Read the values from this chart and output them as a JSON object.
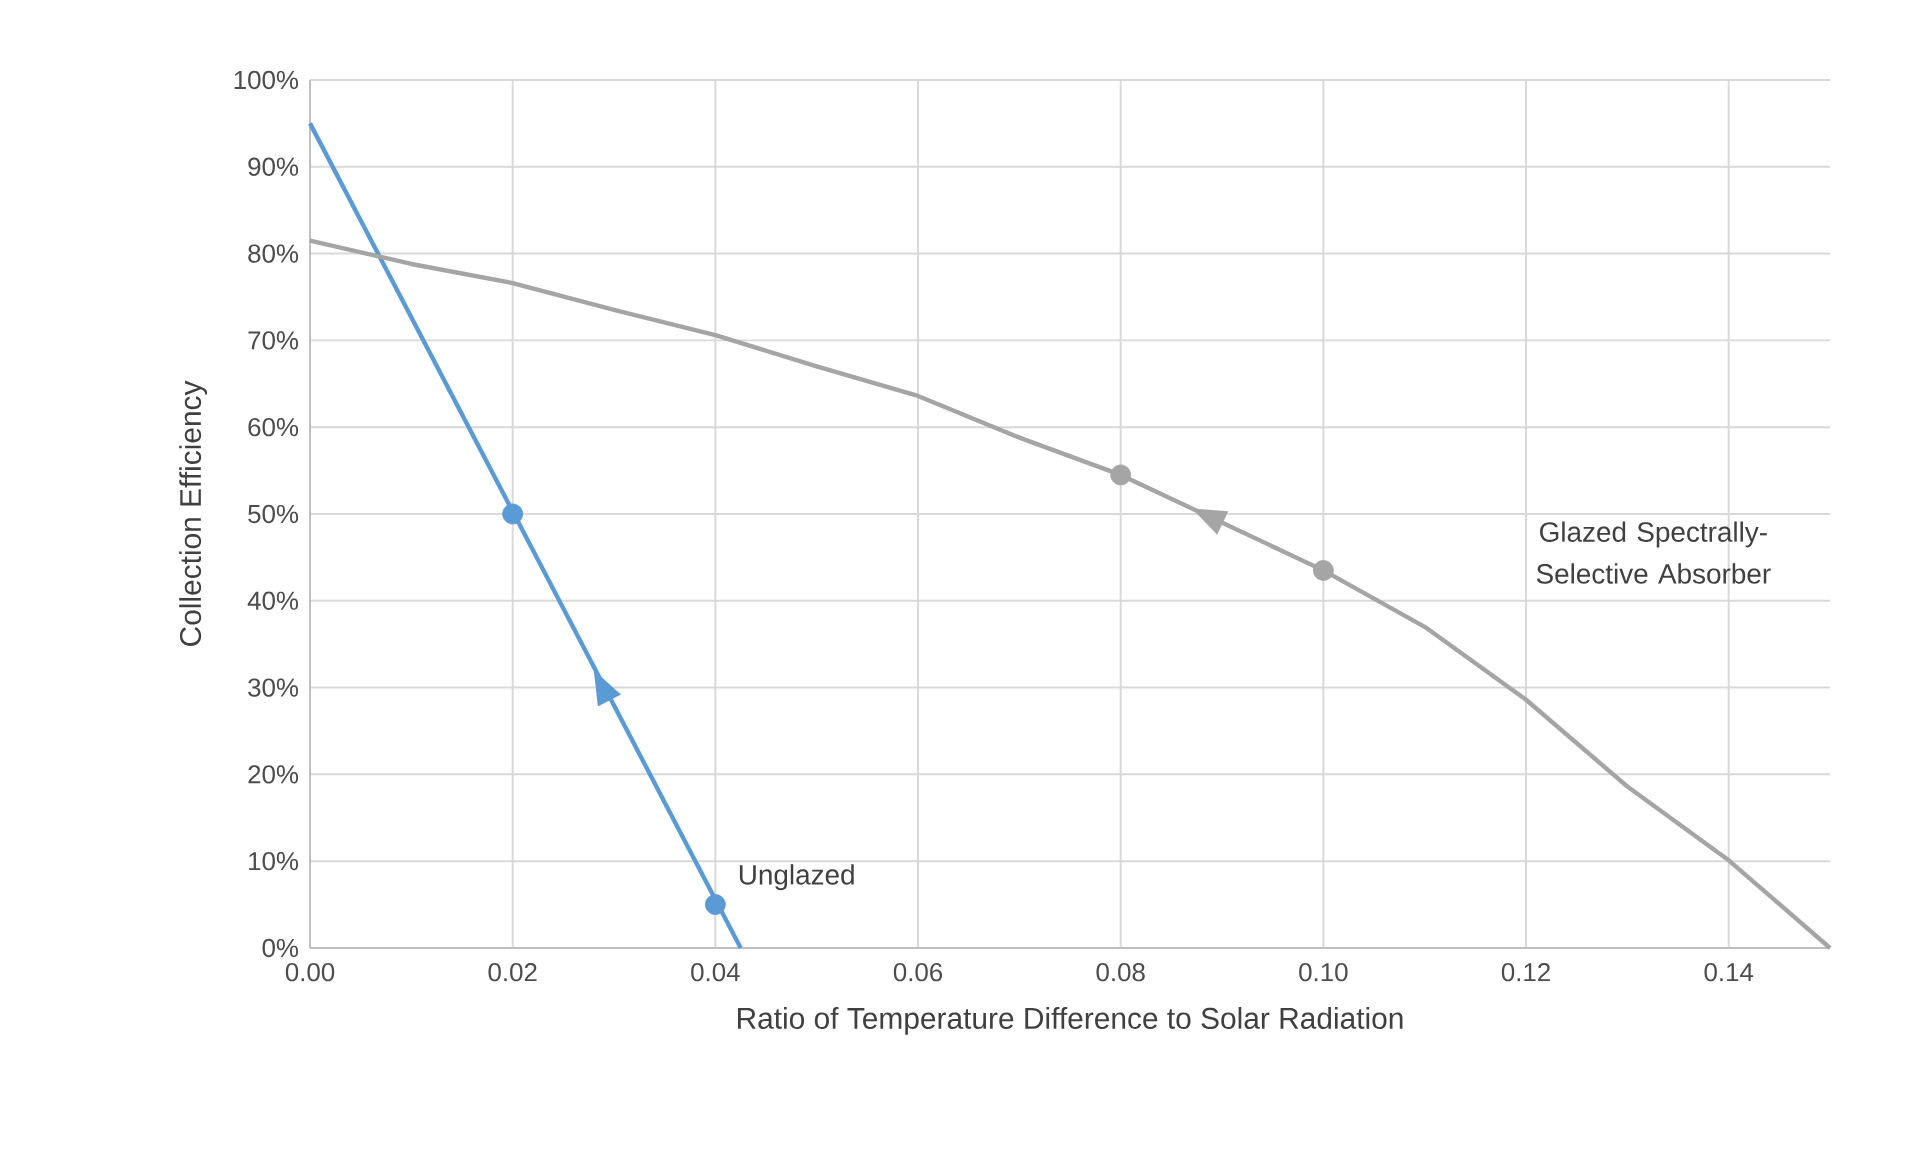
{
  "chart_data": {
    "type": "line",
    "xlabel": "Ratio of Temperature Difference to Solar Radiation",
    "ylabel": "Collection Efficiency",
    "xlim": [
      0,
      0.15
    ],
    "ylim": [
      0,
      100
    ],
    "xticks": [
      {
        "value": 0,
        "label": "0.00"
      },
      {
        "value": 0.02,
        "label": "0.02"
      },
      {
        "value": 0.04,
        "label": "0.04"
      },
      {
        "value": 0.06,
        "label": "0.06"
      },
      {
        "value": 0.08,
        "label": "0.08"
      },
      {
        "value": 0.1,
        "label": "0.10"
      },
      {
        "value": 0.12,
        "label": "0.12"
      },
      {
        "value": 0.14,
        "label": "0.14"
      }
    ],
    "yticks": [
      {
        "value": 0,
        "label": "0%"
      },
      {
        "value": 10,
        "label": "10%"
      },
      {
        "value": 20,
        "label": "20%"
      },
      {
        "value": 30,
        "label": "30%"
      },
      {
        "value": 40,
        "label": "40%"
      },
      {
        "value": 50,
        "label": "50%"
      },
      {
        "value": 60,
        "label": "60%"
      },
      {
        "value": 70,
        "label": "70%"
      },
      {
        "value": 80,
        "label": "80%"
      },
      {
        "value": 90,
        "label": "90%"
      },
      {
        "value": 100,
        "label": "100%"
      }
    ],
    "grid": true,
    "marker": "none",
    "line_style": "solid",
    "series": [
      {
        "color": "#5b9bd5",
        "x": [
          0,
          0.0425
        ],
        "values": [
          95,
          0
        ]
      },
      {
        "type": "scatter",
        "color": "#5b9bd5",
        "marker": "circle",
        "x": [
          0.02,
          0.04
        ],
        "values": [
          50,
          5
        ]
      },
      {
        "color": "#a5a5a5",
        "x": [
          0,
          0.01,
          0.02,
          0.03,
          0.04,
          0.05,
          0.06,
          0.07,
          0.08,
          0.1,
          0.11,
          0.12,
          0.13,
          0.14,
          0.15
        ],
        "values": [
          81.5,
          78.8,
          76.6,
          73.5,
          70.6,
          67,
          63.6,
          58.8,
          54.5,
          43.5,
          37,
          28.6,
          18.6,
          10.1,
          0
        ]
      },
      {
        "type": "scatter",
        "color": "#a5a5a5",
        "marker": "circle",
        "x": [
          0.08,
          0.1
        ],
        "values": [
          54.5,
          43.5
        ]
      }
    ],
    "annotations": [
      "Unglazed",
      "Glazed Spectrally-Selective Absorber"
    ]
  }
}
